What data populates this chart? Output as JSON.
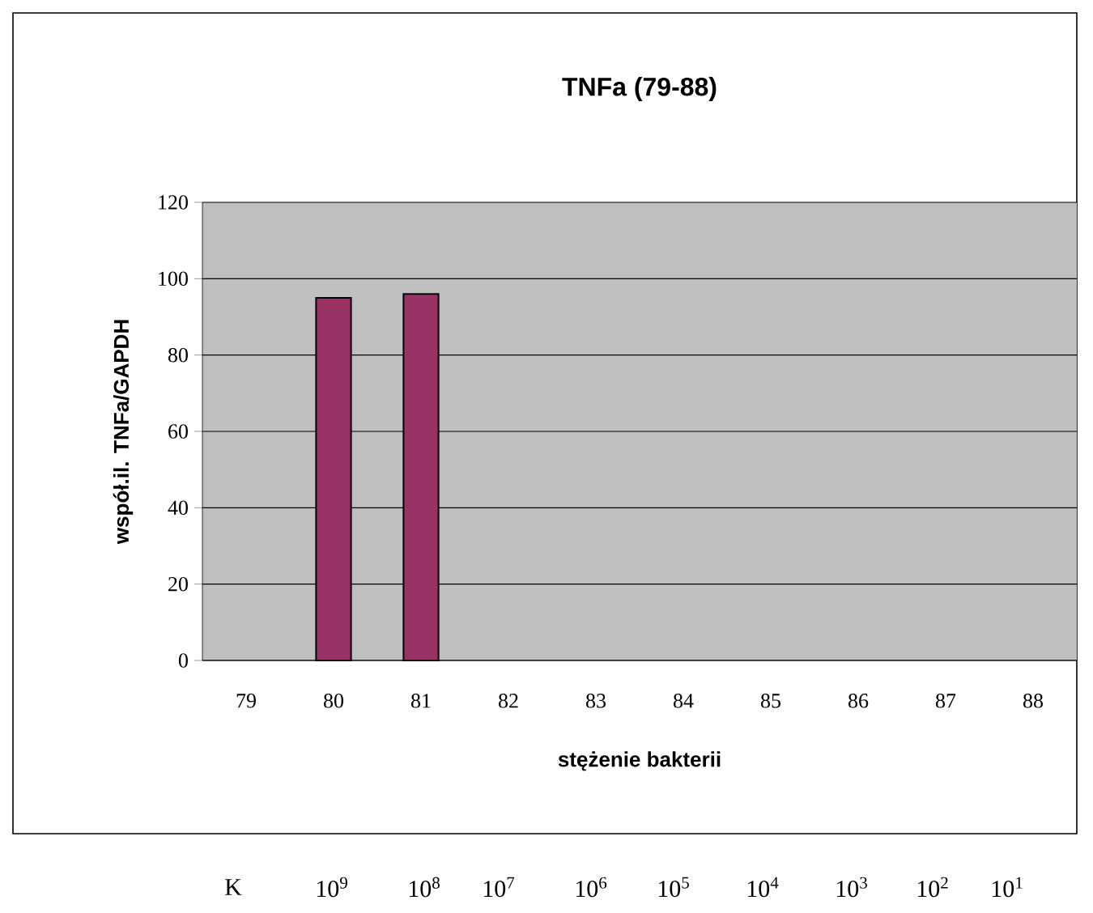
{
  "chart_data": {
    "type": "bar",
    "title": "TNFa (79-88)",
    "xlabel": "stężenie bakterii",
    "ylabel": "współ.il. TNFa/GAPDH",
    "categories": [
      "79",
      "80",
      "81",
      "82",
      "83",
      "84",
      "85",
      "86",
      "87",
      "88"
    ],
    "values": [
      null,
      95,
      96,
      null,
      null,
      null,
      null,
      null,
      null,
      null
    ],
    "color": "#993366",
    "ylim": [
      0,
      120
    ],
    "yticks": [
      0,
      20,
      40,
      60,
      80,
      100,
      120
    ],
    "grid": "y",
    "annotations": [
      "K",
      "10$^{9}$",
      "10$^{8}$",
      "10$^{7}$",
      "10$^{6}$",
      "10$^{5}$",
      "10$^{4}$",
      "10$^{3}$",
      "10$^{2}$",
      "10$^{1}$"
    ]
  }
}
